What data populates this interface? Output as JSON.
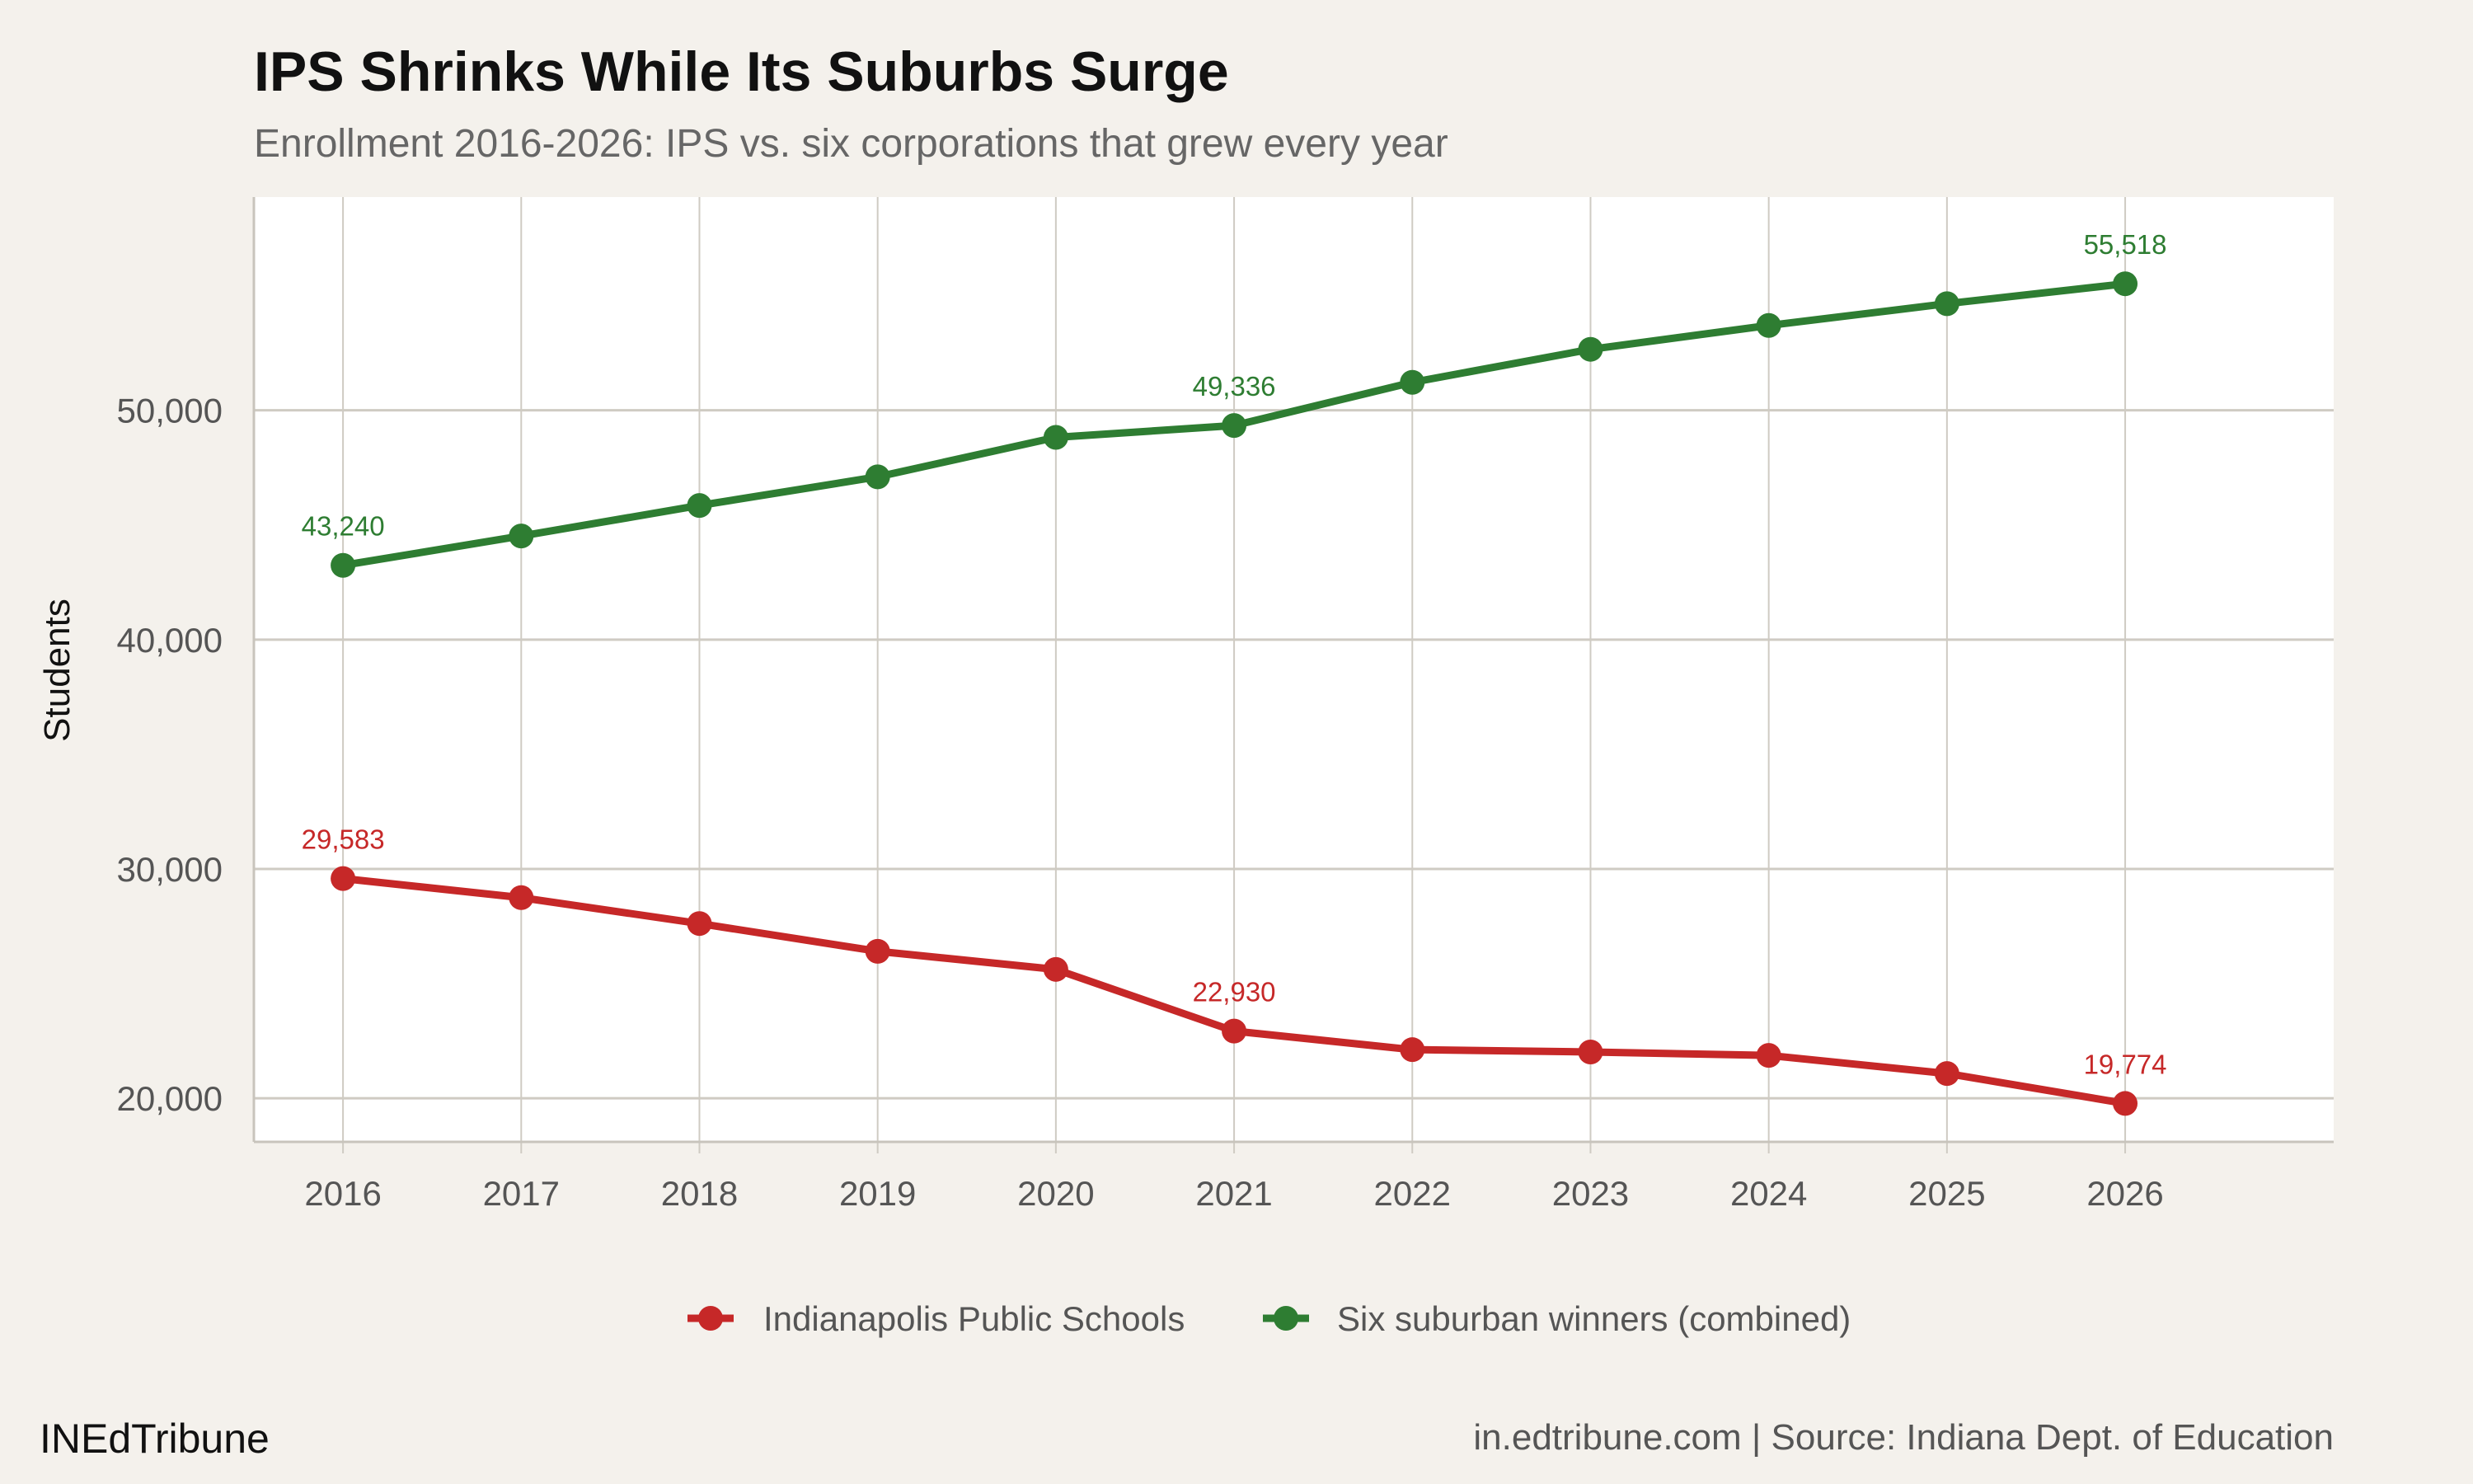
{
  "chart_data": {
    "type": "line",
    "title": "IPS Shrinks While Its Suburbs Surge",
    "subtitle": "Enrollment 2016-2026: IPS vs. six corporations that grew every year",
    "xlabel": "",
    "ylabel": "Students",
    "x": [
      2016,
      2017,
      2018,
      2019,
      2020,
      2021,
      2022,
      2023,
      2024,
      2025,
      2026
    ],
    "x_tick_labels": [
      "2016",
      "2017",
      "2018",
      "2019",
      "2020",
      "2021",
      "2022",
      "2023",
      "2024",
      "2025",
      "2026"
    ],
    "xlim": [
      2015.5,
      2027.17
    ],
    "ylim": [
      18100,
      59300
    ],
    "y_ticks": [
      20000,
      30000,
      40000,
      50000
    ],
    "y_tick_labels": [
      "20,000",
      "30,000",
      "40,000",
      "50,000"
    ],
    "grid": true,
    "legend_position": "bottom",
    "series": [
      {
        "name": "Indianapolis Public Schools",
        "color": "#c62828",
        "values": [
          29583,
          28750,
          27620,
          26410,
          25620,
          22930,
          22120,
          22020,
          21870,
          21080,
          19774
        ],
        "data_labels": [
          {
            "x": 2016,
            "text": "29,583"
          },
          {
            "x": 2021,
            "text": "22,930"
          },
          {
            "x": 2026,
            "text": "19,774"
          }
        ]
      },
      {
        "name": "Six suburban winners (combined)",
        "color": "#2e7d32",
        "values": [
          43240,
          44520,
          45850,
          47100,
          48820,
          49336,
          51220,
          52660,
          53700,
          54650,
          55518
        ],
        "data_labels": [
          {
            "x": 2016,
            "text": "43,240"
          },
          {
            "x": 2021,
            "text": "49,336"
          },
          {
            "x": 2026,
            "text": "55,518"
          }
        ]
      }
    ]
  },
  "footer": {
    "brand": "INEdTribune",
    "caption": "in.edtribune.com | Source: Indiana Dept. of Education"
  },
  "colors": {
    "background": "#f4f1ec",
    "panel": "#ffffff",
    "grid": "#cfcbc3"
  }
}
